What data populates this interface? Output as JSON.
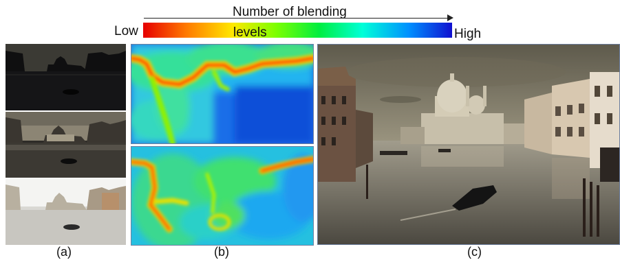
{
  "figure": {
    "colorbar": {
      "title": "Number of blending",
      "low_label": "Low",
      "levels_label": "levels",
      "high_label": "High",
      "colors": [
        "#e60000",
        "#ff7a00",
        "#ffe800",
        "#7cff00",
        "#00ee40",
        "#00ffd8",
        "#0090ff",
        "#1010d0"
      ]
    },
    "captions": {
      "a": "(a)",
      "b": "(b)",
      "c": "(c)"
    }
  }
}
